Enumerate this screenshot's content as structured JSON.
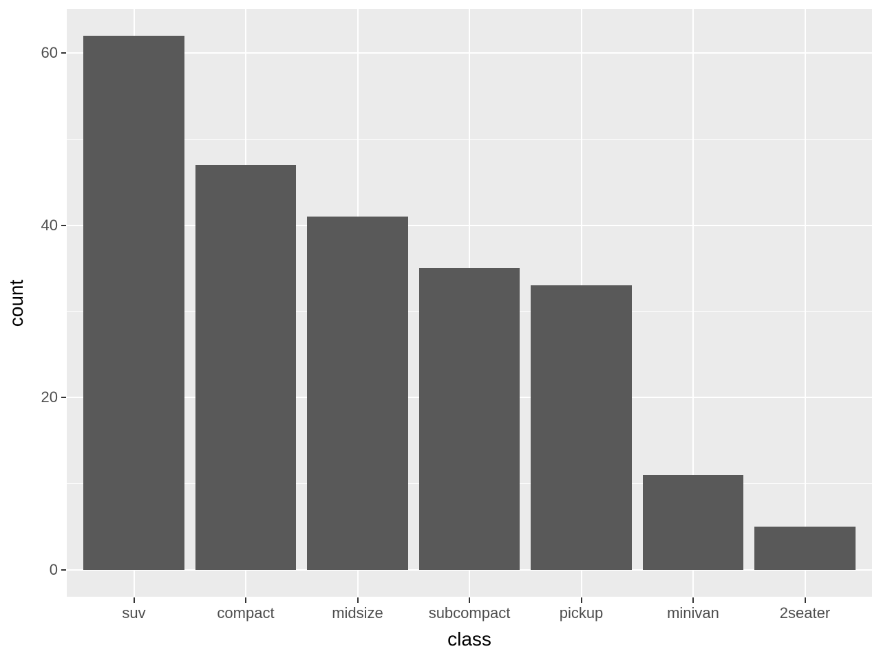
{
  "chart_data": {
    "type": "bar",
    "title": "",
    "xlabel": "class",
    "ylabel": "count",
    "categories": [
      "suv",
      "compact",
      "midsize",
      "subcompact",
      "pickup",
      "minivan",
      "2seater"
    ],
    "values": [
      62,
      47,
      41,
      35,
      33,
      11,
      5
    ],
    "yticks": [
      0,
      20,
      40,
      60
    ],
    "yticks_minor": [
      10,
      30,
      50
    ],
    "ylim": [
      -3.1,
      65.1
    ],
    "grid": "on",
    "legend": "none",
    "colors": {
      "bar_fill": "#595959",
      "panel_background": "#EBEBEB",
      "gridline": "#FFFFFF",
      "tick_label": "#4D4D4D",
      "axis_title": "#000000",
      "tick_mark": "#333333",
      "figure_background": "#FFFFFF"
    }
  }
}
